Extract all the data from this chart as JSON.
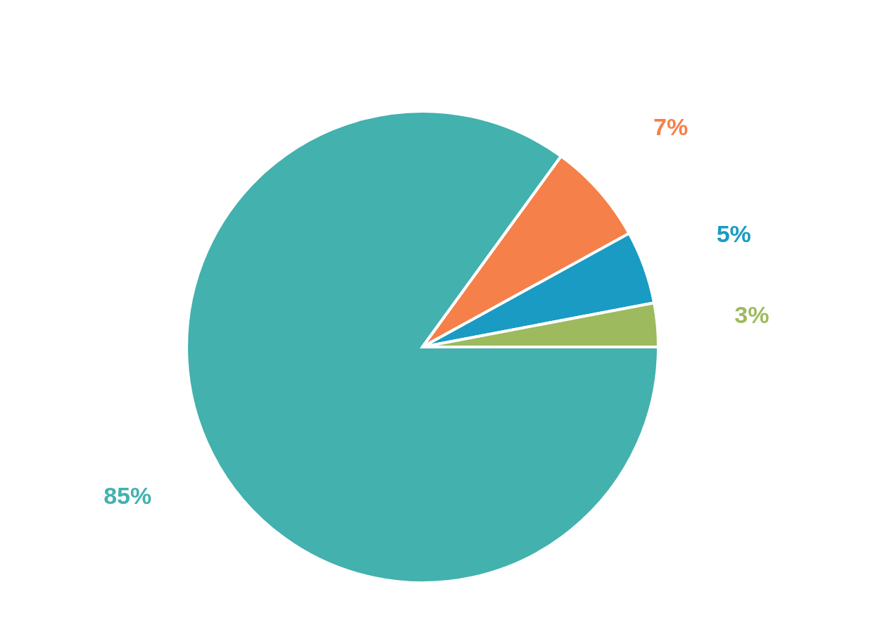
{
  "chart_data": {
    "type": "pie",
    "categories": [
      null,
      null,
      null,
      null
    ],
    "values": [
      85,
      7,
      5,
      3
    ],
    "colors": [
      "#43b1ae",
      "#f58049",
      "#1a9bc4",
      "#9dba5f"
    ],
    "value_labels": [
      "85%",
      "7%",
      "5%",
      "3%"
    ]
  }
}
